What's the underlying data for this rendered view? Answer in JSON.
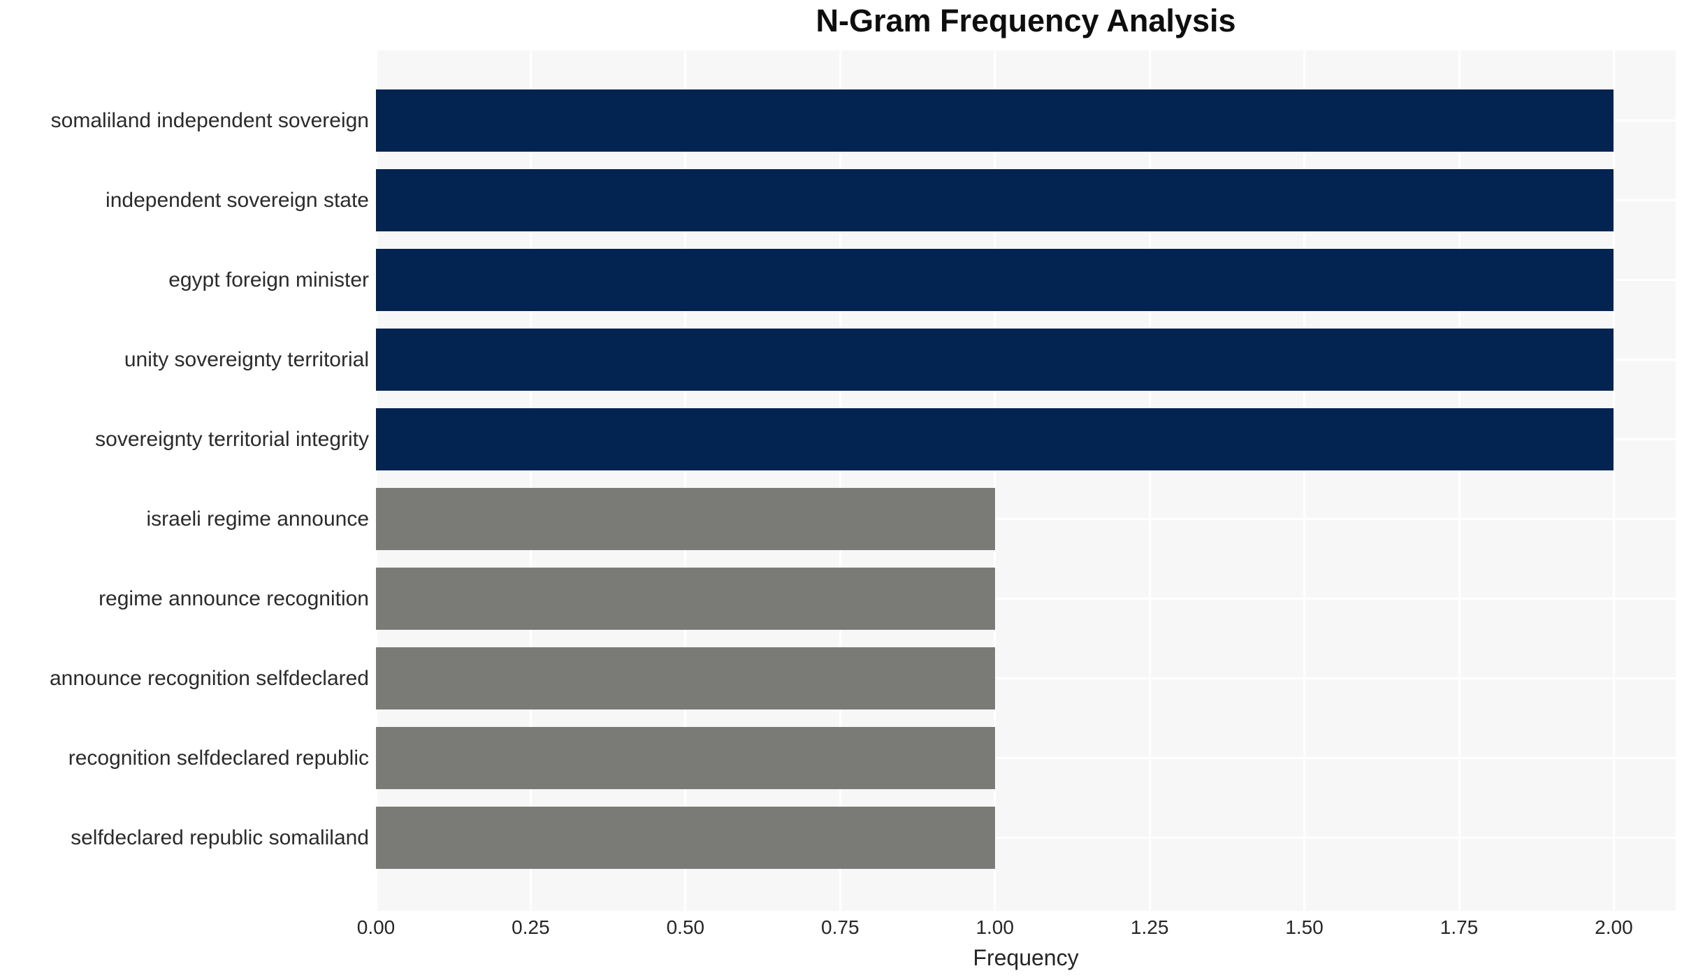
{
  "chart_data": {
    "type": "bar",
    "orientation": "horizontal",
    "title": "N-Gram Frequency Analysis",
    "xlabel": "Frequency",
    "ylabel": "",
    "categories": [
      "somaliland independent sovereign",
      "independent sovereign state",
      "egypt foreign minister",
      "unity sovereignty territorial",
      "sovereignty territorial integrity",
      "israeli regime announce",
      "regime announce recognition",
      "announce recognition selfdeclared",
      "recognition selfdeclared republic",
      "selfdeclared republic somaliland"
    ],
    "values": [
      2,
      2,
      2,
      2,
      2,
      1,
      1,
      1,
      1,
      1
    ],
    "bar_colors": [
      "#032350",
      "#032350",
      "#032350",
      "#032350",
      "#032350",
      "#7a7a77",
      "#7a7a77",
      "#7a7a77",
      "#7a7a77",
      "#7a7a77"
    ],
    "x_tick_labels": [
      "0.00",
      "0.25",
      "0.50",
      "0.75",
      "1.00",
      "1.25",
      "1.50",
      "1.75",
      "2.00"
    ],
    "x_tick_values": [
      0,
      0.25,
      0.5,
      0.75,
      1,
      1.25,
      1.5,
      1.75,
      2
    ],
    "xlim": [
      0,
      2.1
    ],
    "grid": true,
    "legend_position": "none",
    "palette": {
      "high_frequency": "#032350",
      "low_frequency": "#7a7a77",
      "plot_background": "#f7f7f7",
      "grid_color": "#ffffff",
      "title_color": "#0e0e0e",
      "label_color": "#2b2b2b"
    }
  }
}
